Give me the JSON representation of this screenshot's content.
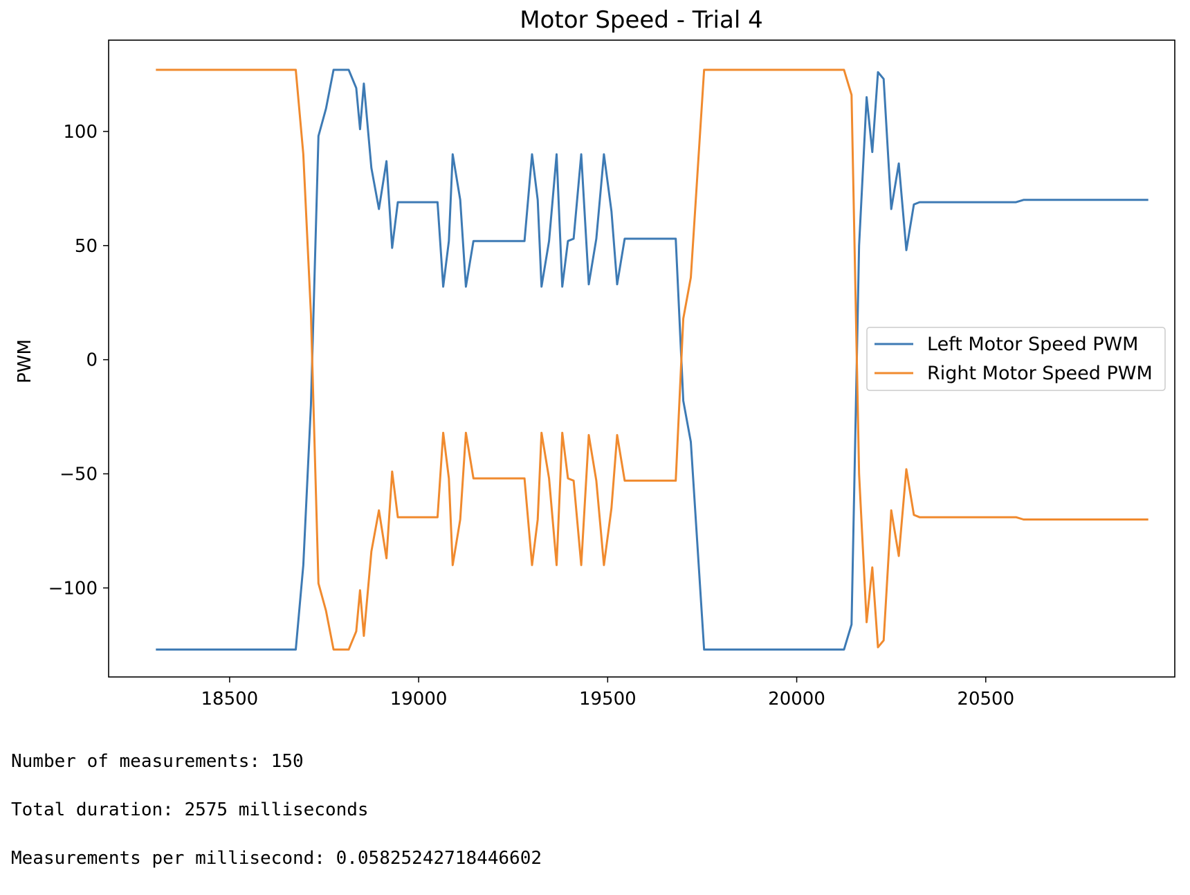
{
  "chart_data": {
    "type": "line",
    "title": "Motor Speed - Trial 4",
    "xlabel": "",
    "ylabel": "PWM",
    "xlim": [
      18180,
      21000
    ],
    "ylim": [
      -139,
      140
    ],
    "x_ticks": [
      18500,
      19000,
      19500,
      20000,
      20500
    ],
    "x_tick_labels": [
      "18500",
      "19000",
      "19500",
      "20000",
      "20500"
    ],
    "y_ticks": [
      -100,
      -50,
      0,
      50,
      100
    ],
    "y_tick_labels": [
      "−100",
      "−50",
      "0",
      "50",
      "100"
    ],
    "grid": false,
    "legend": "center-right",
    "series": [
      {
        "name": "Left Motor Speed PWM",
        "color": "#3d7ab4",
        "points": [
          [
            18305,
            -127
          ],
          [
            18675,
            -127
          ],
          [
            18695,
            -90
          ],
          [
            18715,
            -20
          ],
          [
            18735,
            98
          ],
          [
            18755,
            110
          ],
          [
            18775,
            127
          ],
          [
            18815,
            127
          ],
          [
            18835,
            119
          ],
          [
            18845,
            101
          ],
          [
            18855,
            121
          ],
          [
            18875,
            84
          ],
          [
            18895,
            66
          ],
          [
            18915,
            87
          ],
          [
            18930,
            49
          ],
          [
            18945,
            69
          ],
          [
            19050,
            69
          ],
          [
            19065,
            32
          ],
          [
            19080,
            52
          ],
          [
            19090,
            90
          ],
          [
            19110,
            70
          ],
          [
            19125,
            32
          ],
          [
            19145,
            52
          ],
          [
            19280,
            52
          ],
          [
            19300,
            90
          ],
          [
            19315,
            70
          ],
          [
            19325,
            32
          ],
          [
            19345,
            52
          ],
          [
            19365,
            90
          ],
          [
            19380,
            32
          ],
          [
            19395,
            52
          ],
          [
            19410,
            53
          ],
          [
            19430,
            90
          ],
          [
            19450,
            33
          ],
          [
            19470,
            53
          ],
          [
            19490,
            90
          ],
          [
            19510,
            65
          ],
          [
            19525,
            33
          ],
          [
            19545,
            53
          ],
          [
            19680,
            53
          ],
          [
            19700,
            -18
          ],
          [
            19720,
            -36
          ],
          [
            19755,
            -127
          ],
          [
            20125,
            -127
          ],
          [
            20145,
            -116
          ],
          [
            20165,
            50
          ],
          [
            20185,
            115
          ],
          [
            20200,
            91
          ],
          [
            20215,
            126
          ],
          [
            20230,
            123
          ],
          [
            20250,
            66
          ],
          [
            20270,
            86
          ],
          [
            20290,
            48
          ],
          [
            20310,
            68
          ],
          [
            20325,
            69
          ],
          [
            20580,
            69
          ],
          [
            20600,
            70
          ],
          [
            20930,
            70
          ]
        ]
      },
      {
        "name": "Right Motor Speed PWM",
        "color": "#f08a2e",
        "points": [
          [
            18305,
            127
          ],
          [
            18675,
            127
          ],
          [
            18695,
            90
          ],
          [
            18715,
            20
          ],
          [
            18735,
            -98
          ],
          [
            18755,
            -110
          ],
          [
            18775,
            -127
          ],
          [
            18815,
            -127
          ],
          [
            18835,
            -119
          ],
          [
            18845,
            -101
          ],
          [
            18855,
            -121
          ],
          [
            18875,
            -84
          ],
          [
            18895,
            -66
          ],
          [
            18915,
            -87
          ],
          [
            18930,
            -49
          ],
          [
            18945,
            -69
          ],
          [
            19050,
            -69
          ],
          [
            19065,
            -32
          ],
          [
            19080,
            -52
          ],
          [
            19090,
            -90
          ],
          [
            19110,
            -70
          ],
          [
            19125,
            -32
          ],
          [
            19145,
            -52
          ],
          [
            19280,
            -52
          ],
          [
            19300,
            -90
          ],
          [
            19315,
            -70
          ],
          [
            19325,
            -32
          ],
          [
            19345,
            -52
          ],
          [
            19365,
            -90
          ],
          [
            19380,
            -32
          ],
          [
            19395,
            -52
          ],
          [
            19410,
            -53
          ],
          [
            19430,
            -90
          ],
          [
            19450,
            -33
          ],
          [
            19470,
            -53
          ],
          [
            19490,
            -90
          ],
          [
            19510,
            -65
          ],
          [
            19525,
            -33
          ],
          [
            19545,
            -53
          ],
          [
            19680,
            -53
          ],
          [
            19700,
            18
          ],
          [
            19720,
            36
          ],
          [
            19755,
            127
          ],
          [
            20125,
            127
          ],
          [
            20145,
            116
          ],
          [
            20165,
            -50
          ],
          [
            20185,
            -115
          ],
          [
            20200,
            -91
          ],
          [
            20215,
            -126
          ],
          [
            20230,
            -123
          ],
          [
            20250,
            -66
          ],
          [
            20270,
            -86
          ],
          [
            20290,
            -48
          ],
          [
            20310,
            -68
          ],
          [
            20325,
            -69
          ],
          [
            20580,
            -69
          ],
          [
            20600,
            -70
          ],
          [
            20930,
            -70
          ]
        ]
      }
    ]
  },
  "output": [
    "Number of measurements: 150",
    "Total duration: 2575 milliseconds",
    "Measurements per millisecond: 0.05825242718446602"
  ]
}
